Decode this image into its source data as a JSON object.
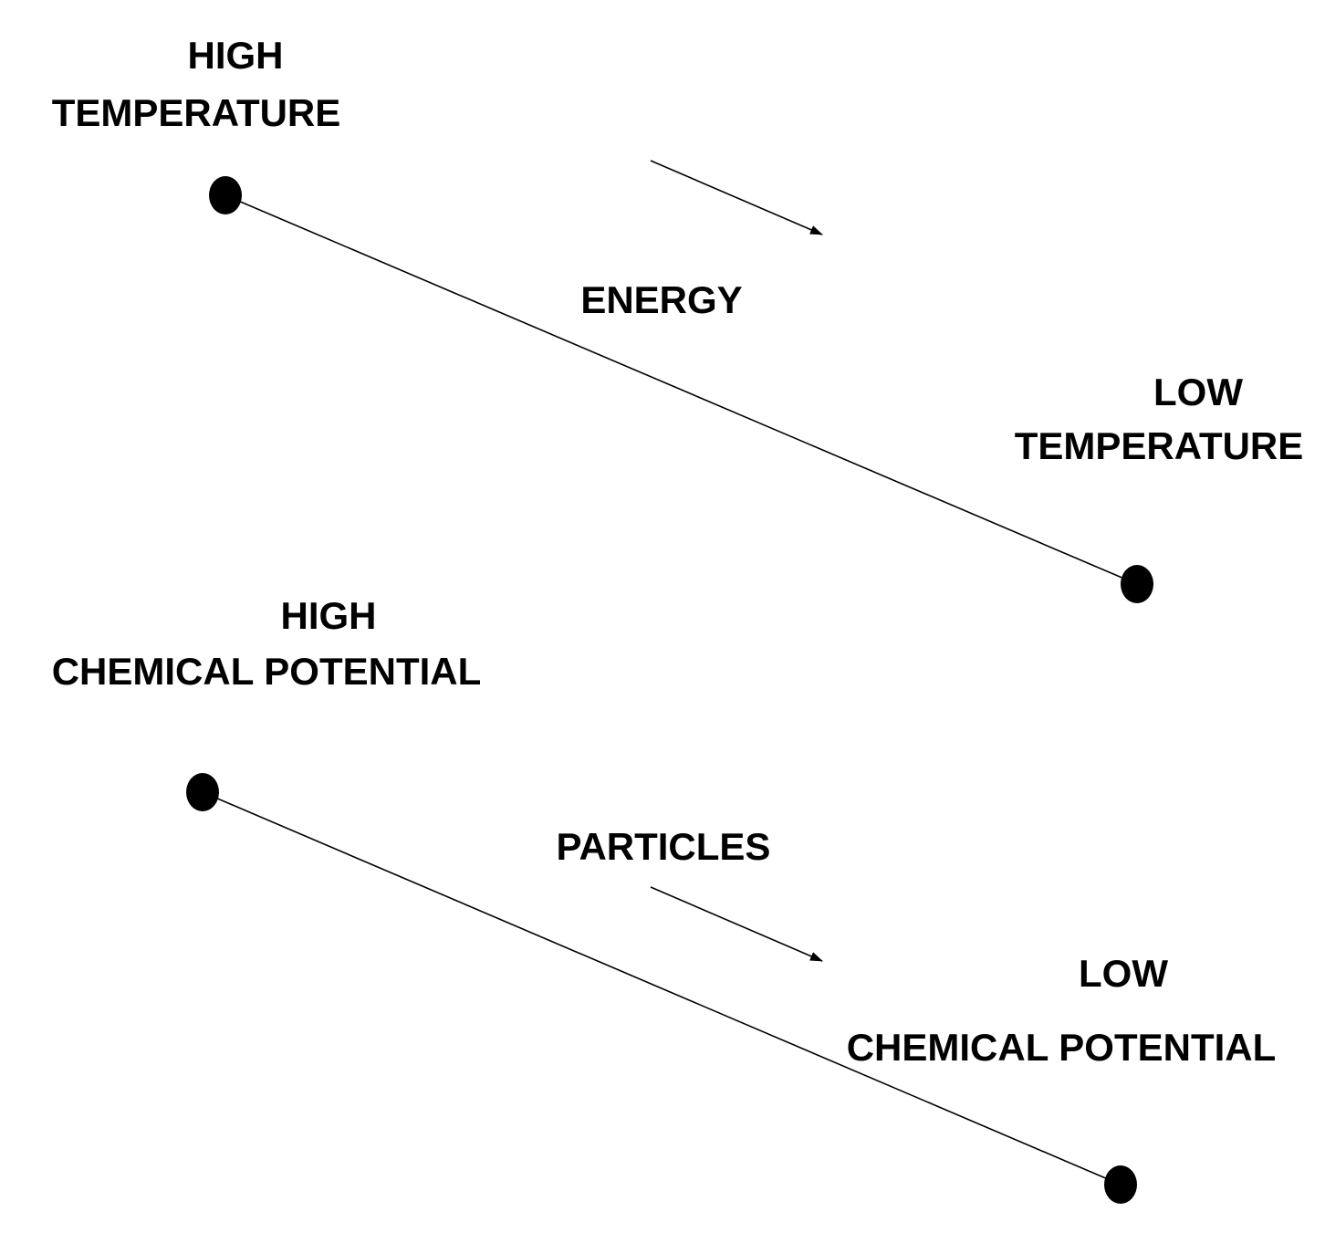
{
  "colors": {
    "ink": "#000000",
    "background": "#ffffff"
  },
  "energy_panel": {
    "source_label_line1": "HIGH",
    "source_label_line2": "TEMPERATURE",
    "flow_label": "ENERGY",
    "sink_label_line1": "LOW",
    "sink_label_line2": "TEMPERATURE"
  },
  "particles_panel": {
    "source_label_line1": "HIGH",
    "source_label_line2": "CHEMICAL POTENTIAL",
    "flow_label": "PARTICLES",
    "sink_label_line1": "LOW",
    "sink_label_line2": "CHEMICAL POTENTIAL"
  }
}
